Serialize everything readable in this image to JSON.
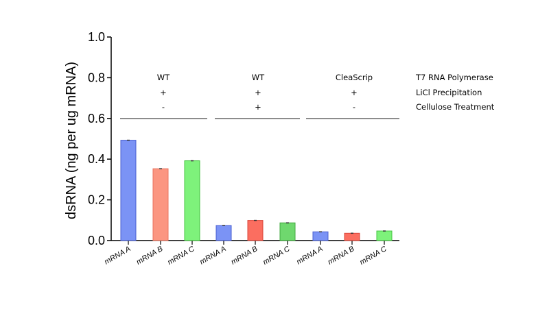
{
  "chart_data": {
    "type": "bar",
    "title": "",
    "xlabel": "",
    "ylabel": "dsRNA (ng per ug mRNA)",
    "ylim": [
      0,
      1.0
    ],
    "yticks": [
      "0.0",
      "0.2",
      "0.4",
      "0.6",
      "0.8",
      "1.0"
    ],
    "grid": false,
    "categories": [
      "mRNA A",
      "mRNA B",
      "mRNA C",
      "mRNA A",
      "mRNA B",
      "mRNA C",
      "mRNA A",
      "mRNA B",
      "mRNA C"
    ],
    "values": [
      0.493,
      0.353,
      0.392,
      0.074,
      0.099,
      0.087,
      0.043,
      0.036,
      0.047
    ],
    "bar_colors": [
      "#7b93f5",
      "#fb9681",
      "#7ef27b",
      "#7b93f5",
      "#fb6e60",
      "#6fd86e",
      "#7b93f5",
      "#fb6e60",
      "#7ef27b"
    ],
    "bar_edge_colors": [
      "#4a5fd0",
      "#e8735e",
      "#45c442",
      "#4a5fd0",
      "#d9453a",
      "#3fa83d",
      "#4a5fd0",
      "#d9453a",
      "#45c442"
    ],
    "conditions": {
      "row_labels": [
        "T7 RNA Polymerase",
        "LiCl Precipitation",
        "Cellulose Treatment"
      ],
      "groups": [
        {
          "polymerase": "WT",
          "licl": "+",
          "cellulose": "-"
        },
        {
          "polymerase": "WT",
          "licl": "+",
          "cellulose": "+"
        },
        {
          "polymerase": "CleaScrip",
          "licl": "+",
          "cellulose": "-"
        }
      ],
      "line_color": "#8c8c8c"
    }
  }
}
